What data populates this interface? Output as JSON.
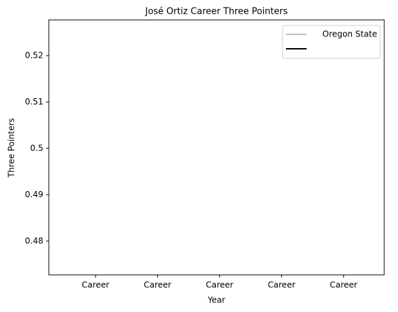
{
  "chart_data": {
    "type": "line",
    "title": "José Ortiz  Career Three Pointers",
    "x_label": "Year",
    "y_label": "Three Pointers",
    "categories": [
      "Career",
      "Career",
      "Career",
      "Career",
      "Career"
    ],
    "series": [
      {
        "name": "Oregon State",
        "color": "#bfbfbf",
        "values": [
          null,
          null,
          null,
          null,
          null
        ]
      },
      {
        "color": "#000000",
        "values": [
          null,
          null,
          null,
          null,
          null
        ]
      }
    ],
    "ylim": [
      0.4727,
      0.5277
    ],
    "yticks": [
      0.48,
      0.49,
      0.5,
      0.51,
      0.52
    ],
    "legend": "upper right",
    "grid": false
  }
}
